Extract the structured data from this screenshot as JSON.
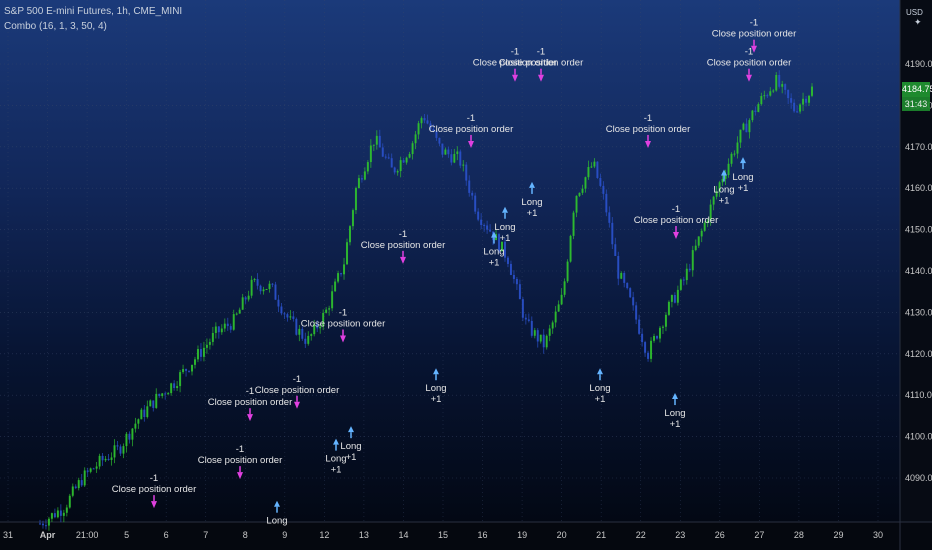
{
  "header": {
    "symbol_line": "S&P 500 E-mini Futures, 1h, CME_MINI",
    "indicator_line": "Combo (16, 1, 3, 50, 4)"
  },
  "currency": "USD",
  "price_tag": {
    "price": "4184.75",
    "timer": "31:43"
  },
  "colors": {
    "up_bar": "#2fbf2f",
    "down_bar": "#2a50c8",
    "close_marker": "#e040e0",
    "long_marker": "#64b4ff",
    "price_tag": "#1e8a2e"
  },
  "chart_data": {
    "type": "candlestick",
    "title": "S&P 500 E-mini Futures, 1h, CME_MINI",
    "ylim": [
      4080,
      4200
    ],
    "y_ticks": [
      "4090.00",
      "4100.00",
      "4110.00",
      "4120.00",
      "4130.00",
      "4140.00",
      "4150.00",
      "4160.00",
      "4170.00",
      "4180.00",
      "4190.00"
    ],
    "x_ticks": [
      "31",
      "Apr",
      "21:00",
      "5",
      "6",
      "7",
      "8",
      "9",
      "12",
      "13",
      "14",
      "15",
      "16",
      "19",
      "20",
      "21",
      "22",
      "23",
      "26",
      "27",
      "28",
      "29",
      "30"
    ],
    "price_path": [
      [
        0.0,
        4079
      ],
      [
        0.04,
        4083
      ],
      [
        0.07,
        4090
      ],
      [
        0.1,
        4094
      ],
      [
        0.13,
        4097
      ],
      [
        0.16,
        4104
      ],
      [
        0.19,
        4109
      ],
      [
        0.22,
        4113
      ],
      [
        0.25,
        4118
      ],
      [
        0.29,
        4125
      ],
      [
        0.32,
        4128
      ],
      [
        0.35,
        4137
      ],
      [
        0.38,
        4136
      ],
      [
        0.41,
        4128
      ],
      [
        0.44,
        4123
      ],
      [
        0.47,
        4130
      ],
      [
        0.5,
        4142
      ],
      [
        0.52,
        4160
      ],
      [
        0.55,
        4172
      ],
      [
        0.58,
        4164
      ],
      [
        0.61,
        4170
      ],
      [
        0.63,
        4178
      ],
      [
        0.66,
        4169
      ],
      [
        0.69,
        4167
      ],
      [
        0.72,
        4154
      ],
      [
        0.74,
        4150
      ],
      [
        0.77,
        4143
      ],
      [
        0.8,
        4127
      ],
      [
        0.83,
        4122
      ],
      [
        0.86,
        4134
      ],
      [
        0.88,
        4158
      ],
      [
        0.91,
        4166
      ],
      [
        0.93,
        4156
      ],
      [
        0.95,
        4140
      ],
      [
        0.97,
        4133
      ],
      [
        1.0,
        4120
      ],
      [
        1.03,
        4130
      ],
      [
        1.06,
        4138
      ],
      [
        1.09,
        4150
      ],
      [
        1.12,
        4162
      ],
      [
        1.15,
        4172
      ],
      [
        1.18,
        4180
      ],
      [
        1.21,
        4186
      ],
      [
        1.24,
        4179
      ],
      [
        1.27,
        4184
      ]
    ],
    "close_orders": [
      {
        "label": "Close position order",
        "qty": "-1",
        "price": 4082
      },
      {
        "label": "Close position order",
        "qty": "-1",
        "price": 4089
      },
      {
        "label": "Close position order",
        "qty": "-1",
        "price": 4103
      },
      {
        "label": "Close position order",
        "qty": "-1",
        "price": 4106
      },
      {
        "label": "Close position order",
        "qty": "-1",
        "price": 4122
      },
      {
        "label": "Close position order",
        "qty": "-1",
        "price": 4141
      },
      {
        "label": "Close position order",
        "qty": "-1",
        "price": 4169
      },
      {
        "label": "Close position order",
        "qty": "-1",
        "price": 4185
      },
      {
        "label": "Close position order",
        "qty": "-1",
        "price": 4185
      },
      {
        "label": "Close position order",
        "qty": "-1",
        "price": 4169
      },
      {
        "label": "Close position order",
        "qty": "-1",
        "price": 4147
      },
      {
        "label": "Close position order",
        "qty": "-1",
        "price": 4185
      },
      {
        "label": "Close position order",
        "qty": "-1",
        "price": 4192
      }
    ],
    "long_orders": [
      {
        "label": "Long",
        "qty": "",
        "price": 4085
      },
      {
        "label": "Long",
        "qty": "+1",
        "price": 4100
      },
      {
        "label": "Long",
        "qty": "+1",
        "price": 4103
      },
      {
        "label": "Long",
        "qty": "+1",
        "price": 4117
      },
      {
        "label": "Long",
        "qty": "+1",
        "price": 4150
      },
      {
        "label": "Long",
        "qty": "+1",
        "price": 4156
      },
      {
        "label": "Long",
        "qty": "+1",
        "price": 4162
      },
      {
        "label": "Long",
        "qty": "+1",
        "price": 4117
      },
      {
        "label": "Long",
        "qty": "+1",
        "price": 4111
      },
      {
        "label": "Long",
        "qty": "+1",
        "price": 4165
      },
      {
        "label": "Long",
        "qty": "+1",
        "price": 4168
      }
    ]
  }
}
